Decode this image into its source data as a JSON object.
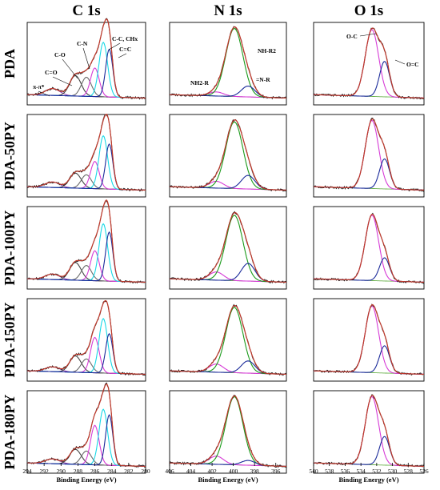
{
  "chart_data": {
    "type": "line",
    "panel_grid": {
      "columns": [
        "C 1s",
        "N 1s",
        "O 1s"
      ],
      "rows": [
        "PDA",
        "PDA-50PY",
        "PDA-100PY",
        "PDA-150PY",
        "PDA-180PY"
      ]
    },
    "x_axes": [
      {
        "column": "C 1s",
        "xlim": [
          294,
          280
        ],
        "ticks": [
          "294",
          "292",
          "290",
          "288",
          "286",
          "284",
          "282",
          "280"
        ],
        "xlabel": "Binding Energy (eV)"
      },
      {
        "column": "N 1s",
        "xlim": [
          406,
          395
        ],
        "ticks": [
          "406",
          "404",
          "402",
          "400",
          "398",
          "396"
        ],
        "xlabel": "Binding Energy (eV)"
      },
      {
        "column": "O 1s",
        "xlim": [
          540,
          526
        ],
        "ticks": [
          "540",
          "538",
          "536",
          "534",
          "532",
          "530",
          "528",
          "526"
        ],
        "xlabel": "Binding Energy (eV)"
      }
    ],
    "annotations": {
      "C 1s": [
        "π-π*",
        "C=O",
        "C-O",
        "C-N",
        "C-C, CHx",
        "C=C"
      ],
      "N 1s": [
        "NH2-R",
        "NH-R2",
        "=N-R"
      ],
      "O 1s": [
        "O-C",
        "O=C"
      ]
    },
    "series_colors": {
      "raw": "#222222",
      "envelope": "#c0392b",
      "background": "#6ab04c",
      "c_pipi": "#8e44ad",
      "c_co_double": "#444444",
      "c_co_single": "#6b6b6b",
      "c_cn": "#d63bd6",
      "c_cc": "#18d8e6",
      "c_c_double": "#1a2a9a",
      "n_nh2": "#d63bd6",
      "n_nh": "#1a9a1a",
      "n_eq": "#1a2a9a",
      "o_single": "#d63bd6",
      "o_double": "#1a2a9a"
    },
    "peaks": {
      "C 1s": [
        {
          "component": "π-π*",
          "center": 291.0,
          "fwhm": 2.0,
          "heights": [
            0.1,
            0.08,
            0.08,
            0.07,
            0.07
          ]
        },
        {
          "component": "C=O",
          "center": 288.3,
          "fwhm": 1.6,
          "heights": [
            0.3,
            0.22,
            0.26,
            0.24,
            0.22
          ]
        },
        {
          "component": "C-O",
          "center": 287.0,
          "fwhm": 1.4,
          "heights": [
            0.28,
            0.2,
            0.22,
            0.2,
            0.2
          ]
        },
        {
          "component": "C-N",
          "center": 286.0,
          "fwhm": 1.2,
          "heights": [
            0.42,
            0.4,
            0.44,
            0.52,
            0.58
          ]
        },
        {
          "component": "C-C, CHx",
          "center": 285.0,
          "fwhm": 1.2,
          "heights": [
            0.8,
            0.78,
            0.84,
            0.8,
            0.82
          ]
        },
        {
          "component": "C=C",
          "center": 284.3,
          "fwhm": 1.0,
          "heights": [
            0.7,
            0.66,
            0.72,
            0.58,
            0.74
          ]
        }
      ],
      "N 1s": [
        {
          "component": "NH2-R",
          "center": 401.6,
          "fwhm": 1.6,
          "heights": [
            0.06,
            0.1,
            0.12,
            0.12,
            0.12
          ]
        },
        {
          "component": "NH-R2",
          "center": 399.9,
          "fwhm": 1.9,
          "heights": [
            1.0,
            0.98,
            0.96,
            0.96,
            1.0
          ]
        },
        {
          "component": "=N-R",
          "center": 398.6,
          "fwhm": 1.5,
          "heights": [
            0.16,
            0.2,
            0.26,
            0.18,
            0.07
          ]
        }
      ],
      "O 1s": [
        {
          "component": "O-C",
          "center": 532.6,
          "fwhm": 2.0,
          "heights": [
            0.98,
            1.0,
            0.96,
            0.98,
            1.0
          ]
        },
        {
          "component": "O=C",
          "center": 531.0,
          "fwhm": 1.5,
          "heights": [
            0.52,
            0.44,
            0.34,
            0.4,
            0.42
          ]
        }
      ]
    }
  }
}
